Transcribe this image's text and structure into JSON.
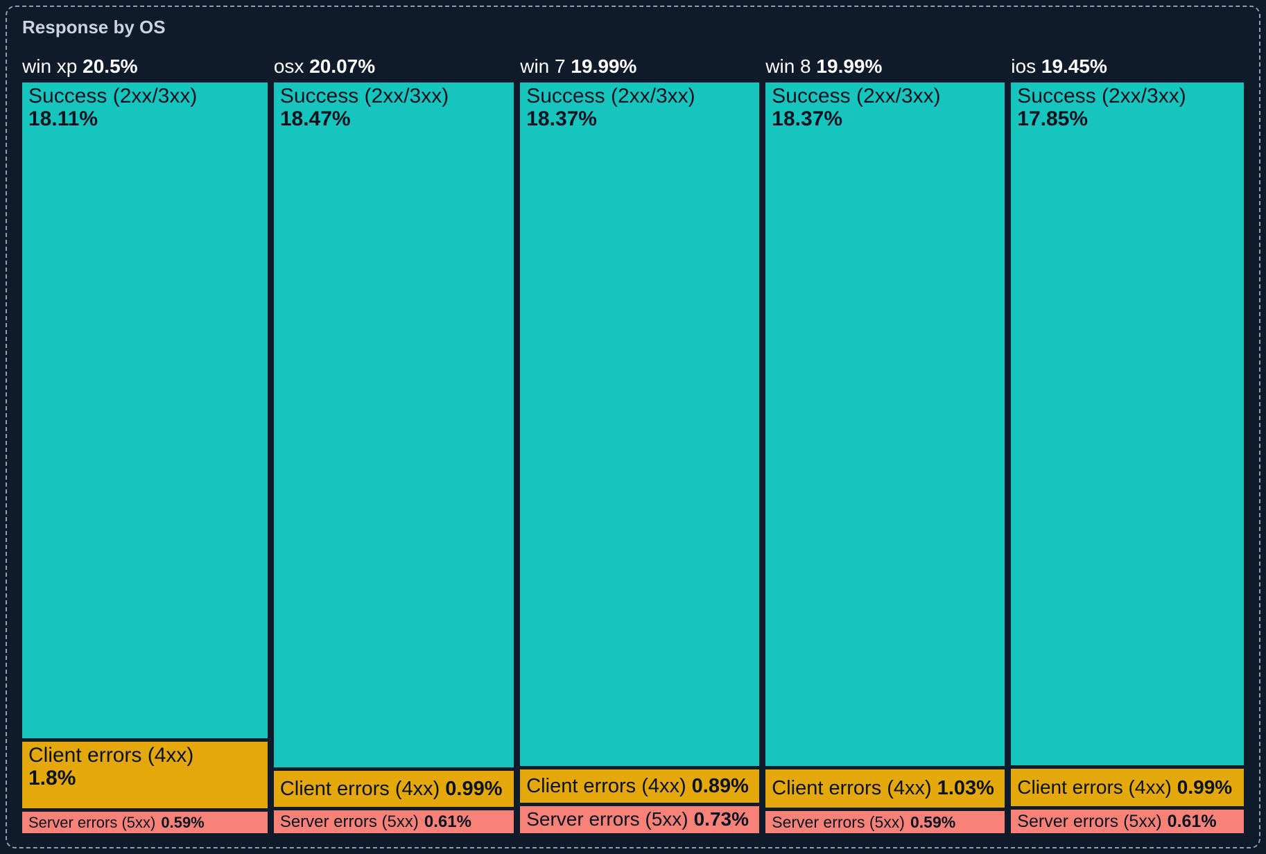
{
  "panel": {
    "title": "Response by OS"
  },
  "colors": {
    "background": "#0f1a2b",
    "panel_border": "#8fa0b4",
    "title_text": "#cbd5e1",
    "header_text": "#ffffff",
    "block_text": "#0a1220",
    "success": "#17c5bf",
    "client_errors": "#e4a80a",
    "server_errors": "#f98278"
  },
  "chart_data": {
    "type": "treemap",
    "title": "Response by OS",
    "group_by": "OS",
    "legend_position": "none",
    "value_unit": "%",
    "category_labels": [
      "Success (2xx/3xx)",
      "Client errors (4xx)",
      "Server errors (5xx)"
    ],
    "groups": [
      {
        "name": "win xp",
        "share": 20.5,
        "share_label": "20.5%",
        "blocks": [
          {
            "label": "Success (2xx/3xx)",
            "value": 18.11,
            "value_label": "18.11%",
            "color_key": "success"
          },
          {
            "label": "Client errors (4xx)",
            "value": 1.8,
            "value_label": "1.8%",
            "color_key": "client_errors"
          },
          {
            "label": "Server errors (5xx)",
            "value": 0.59,
            "value_label": "0.59%",
            "color_key": "server_errors"
          }
        ]
      },
      {
        "name": "osx",
        "share": 20.07,
        "share_label": "20.07%",
        "blocks": [
          {
            "label": "Success (2xx/3xx)",
            "value": 18.47,
            "value_label": "18.47%",
            "color_key": "success"
          },
          {
            "label": "Client errors (4xx)",
            "value": 0.99,
            "value_label": "0.99%",
            "color_key": "client_errors"
          },
          {
            "label": "Server errors (5xx)",
            "value": 0.61,
            "value_label": "0.61%",
            "color_key": "server_errors"
          }
        ]
      },
      {
        "name": "win 7",
        "share": 19.99,
        "share_label": "19.99%",
        "blocks": [
          {
            "label": "Success (2xx/3xx)",
            "value": 18.37,
            "value_label": "18.37%",
            "color_key": "success"
          },
          {
            "label": "Client errors (4xx)",
            "value": 0.89,
            "value_label": "0.89%",
            "color_key": "client_errors"
          },
          {
            "label": "Server errors (5xx)",
            "value": 0.73,
            "value_label": "0.73%",
            "color_key": "server_errors"
          }
        ]
      },
      {
        "name": "win 8",
        "share": 19.99,
        "share_label": "19.99%",
        "blocks": [
          {
            "label": "Success (2xx/3xx)",
            "value": 18.37,
            "value_label": "18.37%",
            "color_key": "success"
          },
          {
            "label": "Client errors (4xx)",
            "value": 1.03,
            "value_label": "1.03%",
            "color_key": "client_errors"
          },
          {
            "label": "Server errors (5xx)",
            "value": 0.59,
            "value_label": "0.59%",
            "color_key": "server_errors"
          }
        ]
      },
      {
        "name": "ios",
        "share": 19.45,
        "share_label": "19.45%",
        "blocks": [
          {
            "label": "Success (2xx/3xx)",
            "value": 17.85,
            "value_label": "17.85%",
            "color_key": "success"
          },
          {
            "label": "Client errors (4xx)",
            "value": 0.99,
            "value_label": "0.99%",
            "color_key": "client_errors"
          },
          {
            "label": "Server errors (5xx)",
            "value": 0.61,
            "value_label": "0.61%",
            "color_key": "server_errors"
          }
        ]
      }
    ]
  }
}
